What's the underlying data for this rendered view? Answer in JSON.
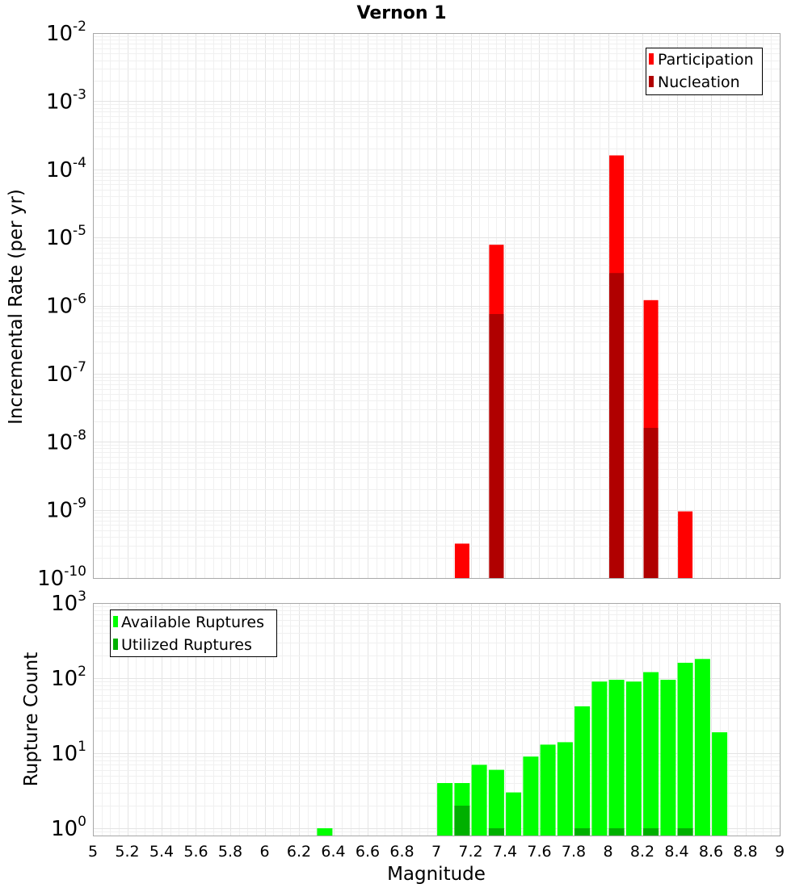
{
  "chart_data": [
    {
      "type": "bar",
      "title": "Vernon 1",
      "xlabel": "",
      "ylabel": "Incremental Rate (per yr)",
      "yscale": "log",
      "ylim": [
        1e-10,
        0.01
      ],
      "xlim": [
        5,
        9
      ],
      "grid": true,
      "legend_position": "top-right",
      "y_ticks": [
        {
          "base": "10",
          "exp": "-10"
        },
        {
          "base": "10",
          "exp": "-9"
        },
        {
          "base": "10",
          "exp": "-8"
        },
        {
          "base": "10",
          "exp": "-7"
        },
        {
          "base": "10",
          "exp": "-6"
        },
        {
          "base": "10",
          "exp": "-5"
        },
        {
          "base": "10",
          "exp": "-4"
        },
        {
          "base": "10",
          "exp": "-3"
        },
        {
          "base": "10",
          "exp": "-2"
        }
      ],
      "series": [
        {
          "name": "Participation",
          "color": "#ff0000",
          "points": [
            {
              "x": 7.15,
              "y": 3.2e-10
            },
            {
              "x": 7.35,
              "y": 7.8e-06
            },
            {
              "x": 8.05,
              "y": 0.00016
            },
            {
              "x": 8.25,
              "y": 1.2e-06
            },
            {
              "x": 8.45,
              "y": 9.5e-10
            }
          ]
        },
        {
          "name": "Nucleation",
          "color": "#b00000",
          "points": [
            {
              "x": 7.35,
              "y": 7.5e-07
            },
            {
              "x": 8.05,
              "y": 3e-06
            },
            {
              "x": 8.25,
              "y": 1.6e-08
            }
          ]
        }
      ]
    },
    {
      "type": "bar",
      "title": "",
      "xlabel": "Magnitude",
      "ylabel": "Rupture Count",
      "yscale": "log",
      "ylim": [
        0.8,
        1000
      ],
      "xlim": [
        5,
        9
      ],
      "grid": true,
      "legend_position": "top-left",
      "x_ticks": [
        "5",
        "5.2",
        "5.4",
        "5.6",
        "5.8",
        "6",
        "6.2",
        "6.4",
        "6.6",
        "6.8",
        "7",
        "7.2",
        "7.4",
        "7.6",
        "7.8",
        "8",
        "8.2",
        "8.4",
        "8.6",
        "8.8",
        "9"
      ],
      "y_ticks": [
        {
          "base": "10",
          "exp": "0"
        },
        {
          "base": "10",
          "exp": "1"
        },
        {
          "base": "10",
          "exp": "2"
        },
        {
          "base": "10",
          "exp": "3"
        }
      ],
      "series": [
        {
          "name": "Available Ruptures",
          "color": "#00ff00",
          "points": [
            {
              "x": 6.35,
              "y": 1
            },
            {
              "x": 7.05,
              "y": 4
            },
            {
              "x": 7.15,
              "y": 4
            },
            {
              "x": 7.25,
              "y": 7
            },
            {
              "x": 7.35,
              "y": 6
            },
            {
              "x": 7.45,
              "y": 3
            },
            {
              "x": 7.55,
              "y": 9
            },
            {
              "x": 7.65,
              "y": 13
            },
            {
              "x": 7.75,
              "y": 14
            },
            {
              "x": 7.85,
              "y": 42
            },
            {
              "x": 7.95,
              "y": 90
            },
            {
              "x": 8.05,
              "y": 95
            },
            {
              "x": 8.15,
              "y": 90
            },
            {
              "x": 8.25,
              "y": 120
            },
            {
              "x": 8.35,
              "y": 95
            },
            {
              "x": 8.45,
              "y": 160
            },
            {
              "x": 8.55,
              "y": 180
            },
            {
              "x": 8.65,
              "y": 19
            }
          ]
        },
        {
          "name": "Utilized Ruptures",
          "color": "#00b000",
          "points": [
            {
              "x": 7.15,
              "y": 2
            },
            {
              "x": 7.35,
              "y": 1
            },
            {
              "x": 7.85,
              "y": 1
            },
            {
              "x": 8.05,
              "y": 1
            },
            {
              "x": 8.25,
              "y": 1
            },
            {
              "x": 8.45,
              "y": 1
            }
          ]
        }
      ]
    }
  ]
}
